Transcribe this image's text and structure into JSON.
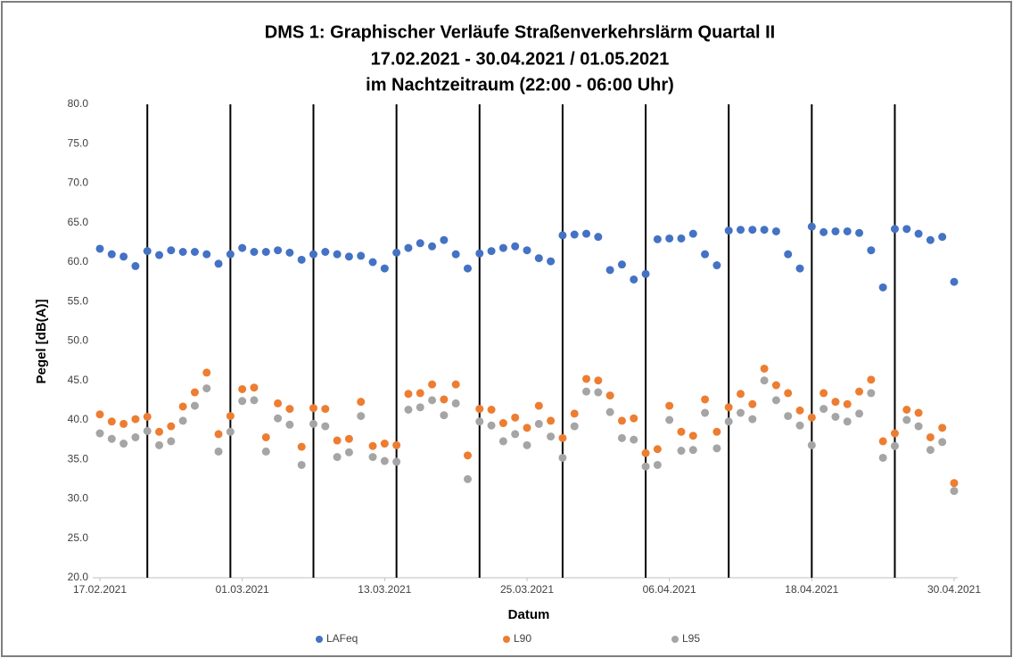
{
  "chart_data": {
    "type": "scatter",
    "title": [
      "DMS 1: Graphischer Verläufe Straßenverkehrslärm Quartal II",
      "17.02.2021  - 30.04.2021 / 01.05.2021",
      "im Nachtzeitraum (22:00 - 06:00 Uhr)"
    ],
    "xlabel": "Datum",
    "ylabel": "Pegel [dB(A)]",
    "x": [
      "17.02.2021",
      "18.02.2021",
      "19.02.2021",
      "20.02.2021",
      "21.02.2021",
      "22.02.2021",
      "23.02.2021",
      "24.02.2021",
      "25.02.2021",
      "26.02.2021",
      "27.02.2021",
      "28.02.2021",
      "01.03.2021",
      "02.03.2021",
      "03.03.2021",
      "04.03.2021",
      "05.03.2021",
      "06.03.2021",
      "07.03.2021",
      "08.03.2021",
      "09.03.2021",
      "10.03.2021",
      "11.03.2021",
      "12.03.2021",
      "13.03.2021",
      "14.03.2021",
      "15.03.2021",
      "16.03.2021",
      "17.03.2021",
      "18.03.2021",
      "19.03.2021",
      "20.03.2021",
      "21.03.2021",
      "22.03.2021",
      "23.03.2021",
      "24.03.2021",
      "25.03.2021",
      "26.03.2021",
      "27.03.2021",
      "28.03.2021",
      "29.03.2021",
      "30.03.2021",
      "31.03.2021",
      "01.04.2021",
      "02.04.2021",
      "03.04.2021",
      "04.04.2021",
      "05.04.2021",
      "06.04.2021",
      "07.04.2021",
      "08.04.2021",
      "09.04.2021",
      "10.04.2021",
      "11.04.2021",
      "12.04.2021",
      "13.04.2021",
      "14.04.2021",
      "15.04.2021",
      "16.04.2021",
      "17.04.2021",
      "18.04.2021",
      "19.04.2021",
      "20.04.2021",
      "21.04.2021",
      "22.04.2021",
      "23.04.2021",
      "24.04.2021",
      "25.04.2021",
      "26.04.2021",
      "27.04.2021",
      "28.04.2021",
      "29.04.2021",
      "30.04.2021"
    ],
    "series": [
      {
        "name": "LAFeq",
        "color": "#4472c4",
        "values": [
          61.7,
          61.0,
          60.7,
          59.5,
          61.4,
          60.9,
          61.5,
          61.3,
          61.3,
          61.0,
          59.8,
          61.0,
          61.8,
          61.3,
          61.3,
          61.5,
          61.2,
          60.3,
          61.0,
          61.3,
          61.0,
          60.7,
          60.8,
          60.0,
          59.2,
          61.2,
          61.8,
          62.4,
          62.0,
          62.8,
          61.0,
          59.2,
          61.1,
          61.4,
          61.8,
          62.0,
          61.5,
          60.5,
          60.1,
          63.4,
          63.5,
          63.6,
          63.2,
          59.0,
          59.7,
          57.8,
          58.5,
          62.9,
          63.0,
          63.0,
          63.6,
          61.0,
          59.6,
          64.0,
          64.1,
          64.1,
          64.1,
          63.9,
          61.0,
          59.2,
          64.5,
          63.8,
          63.9,
          63.9,
          63.7,
          61.5,
          56.8,
          64.2,
          64.2,
          63.6,
          62.8,
          63.2,
          57.5
        ]
      },
      {
        "name": "L90",
        "color": "#ed7d31",
        "values": [
          40.7,
          39.8,
          39.5,
          40.1,
          40.4,
          38.5,
          39.2,
          41.7,
          43.5,
          46.0,
          38.2,
          40.5,
          43.9,
          44.1,
          37.8,
          42.1,
          41.4,
          36.6,
          41.5,
          41.4,
          37.4,
          37.6,
          42.3,
          36.7,
          37.0,
          36.8,
          43.3,
          43.4,
          44.5,
          42.6,
          44.5,
          35.5,
          41.4,
          41.3,
          39.6,
          40.3,
          39.0,
          41.8,
          39.9,
          37.7,
          40.8,
          45.2,
          45.0,
          43.1,
          39.9,
          40.2,
          35.8,
          36.3,
          41.8,
          38.5,
          38.0,
          42.6,
          38.5,
          41.6,
          43.3,
          42.0,
          46.5,
          44.4,
          43.4,
          41.2,
          40.3,
          43.4,
          42.3,
          42.0,
          43.6,
          45.1,
          37.3,
          38.3,
          41.3,
          40.9,
          37.8,
          39.0,
          32.0
        ]
      },
      {
        "name": "L95",
        "color": "#a5a5a5",
        "values": [
          38.3,
          37.6,
          37.0,
          37.8,
          38.6,
          36.8,
          37.3,
          39.9,
          41.8,
          44.0,
          36.0,
          38.5,
          42.4,
          42.5,
          36.0,
          40.2,
          39.4,
          34.3,
          39.5,
          39.2,
          35.3,
          35.9,
          40.5,
          35.3,
          34.8,
          34.7,
          41.3,
          41.6,
          42.5,
          40.6,
          42.1,
          32.5,
          39.8,
          39.3,
          37.3,
          38.2,
          36.8,
          39.5,
          37.9,
          35.2,
          39.2,
          43.6,
          43.5,
          41.0,
          37.7,
          37.5,
          34.1,
          34.3,
          40.0,
          36.1,
          36.2,
          40.9,
          36.4,
          39.8,
          40.9,
          40.1,
          45.0,
          42.5,
          40.5,
          39.3,
          36.8,
          41.4,
          40.4,
          39.8,
          40.8,
          43.4,
          35.2,
          36.7,
          40.0,
          39.2,
          36.2,
          37.2,
          31.0
        ]
      }
    ],
    "xlim": [
      "17.02.2021",
      "30.04.2021"
    ],
    "xticks": [
      "17.02.2021",
      "01.03.2021",
      "13.03.2021",
      "25.03.2021",
      "06.04.2021",
      "18.04.2021",
      "30.04.2021"
    ],
    "vlines": [
      "21.02.2021",
      "28.02.2021",
      "07.03.2021",
      "14.03.2021",
      "21.03.2021",
      "28.03.2021",
      "04.04.2021",
      "11.04.2021",
      "18.04.2021",
      "25.04.2021"
    ],
    "ylim": [
      20,
      80
    ],
    "yticks": [
      {
        "value": 20,
        "label": "20.0"
      },
      {
        "value": 25,
        "label": "25.0"
      },
      {
        "value": 30,
        "label": "30.0"
      },
      {
        "value": 35,
        "label": "35.0"
      },
      {
        "value": 40,
        "label": "40.0"
      },
      {
        "value": 45,
        "label": "45.0"
      },
      {
        "value": 50,
        "label": "50.0"
      },
      {
        "value": 55,
        "label": "55.0"
      },
      {
        "value": 60,
        "label": "60.0"
      },
      {
        "value": 65,
        "label": "65.0"
      },
      {
        "value": 70,
        "label": "70.0"
      },
      {
        "value": 75,
        "label": "75.0"
      },
      {
        "value": 80,
        "label": "80.0"
      }
    ],
    "legend": "bottom"
  }
}
